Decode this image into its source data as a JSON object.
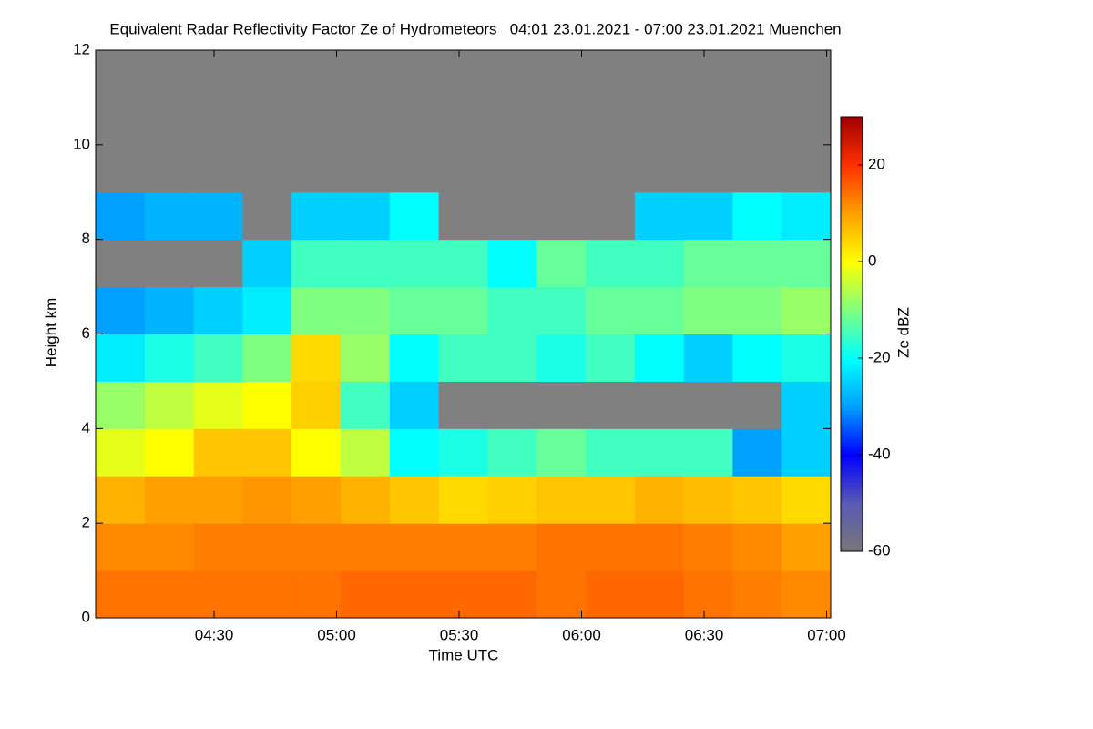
{
  "chart_data": {
    "type": "heatmap",
    "title": "Equivalent Radar Reflectivity Factor Ze of Hydrometeors   04:01 23.01.2021 - 07:00 23.01.2021 Muenchen",
    "x_label": "Time UTC",
    "y_label": "Height km",
    "colorbar_label": "Ze dBZ",
    "xlim": [
      241,
      421
    ],
    "ylim": [
      0,
      12
    ],
    "xticks": [
      {
        "value": 270,
        "label": "04:30"
      },
      {
        "value": 300,
        "label": "05:00"
      },
      {
        "value": 330,
        "label": "05:30"
      },
      {
        "value": 360,
        "label": "06:00"
      },
      {
        "value": 390,
        "label": "06:30"
      },
      {
        "value": 420,
        "label": "07:00"
      }
    ],
    "yticks": [
      0,
      2,
      4,
      6,
      8,
      10,
      12
    ],
    "x_bins": [
      241,
      253,
      265,
      277,
      289,
      301,
      313,
      325,
      337,
      349,
      361,
      373,
      385,
      397,
      409,
      421
    ],
    "y_bins": [
      0,
      1,
      2,
      3,
      4,
      5,
      6,
      7,
      8,
      9,
      10,
      11,
      12
    ],
    "values": [
      [
        14,
        14,
        14,
        14,
        14,
        15,
        15,
        15,
        15,
        14,
        15,
        15,
        14,
        13,
        12
      ],
      [
        12,
        12,
        13,
        13,
        13,
        13,
        13,
        13,
        13,
        14,
        14,
        14,
        13,
        12,
        10
      ],
      [
        8,
        10,
        10,
        11,
        10,
        8,
        6,
        4,
        5,
        6,
        6,
        8,
        7,
        6,
        4
      ],
      [
        -2,
        0,
        6,
        6,
        0,
        -5,
        -20,
        -18,
        -15,
        -12,
        -15,
        -15,
        -15,
        -30,
        -25
      ],
      [
        -8,
        -5,
        -2,
        0,
        5,
        -15,
        -25,
        null,
        null,
        null,
        null,
        null,
        null,
        null,
        -25
      ],
      [
        -22,
        -18,
        -15,
        -10,
        4,
        -8,
        -20,
        -15,
        -15,
        -18,
        -15,
        -20,
        -25,
        -20,
        -18
      ],
      [
        -30,
        -28,
        -25,
        -22,
        -10,
        -10,
        -12,
        -12,
        -15,
        -15,
        -12,
        -12,
        -10,
        -10,
        -8
      ],
      [
        null,
        null,
        null,
        -25,
        -15,
        -15,
        -15,
        -15,
        -20,
        -12,
        -15,
        -15,
        -12,
        -12,
        -12
      ],
      [
        -30,
        -28,
        -28,
        null,
        -25,
        -25,
        -20,
        null,
        null,
        null,
        null,
        -25,
        -25,
        -20,
        -22
      ],
      [
        null,
        null,
        null,
        null,
        null,
        null,
        null,
        null,
        null,
        null,
        null,
        null,
        null,
        null,
        null
      ],
      [
        null,
        null,
        null,
        null,
        null,
        null,
        null,
        null,
        null,
        null,
        null,
        null,
        null,
        null,
        null
      ],
      [
        null,
        null,
        null,
        null,
        null,
        null,
        null,
        null,
        null,
        null,
        null,
        null,
        null,
        null,
        null
      ]
    ],
    "zlim": [
      -60,
      30
    ],
    "zticks": [
      -60,
      -40,
      -20,
      0,
      20
    ],
    "colors": [
      "#787878",
      "#5a5ab4",
      "#0000ff",
      "#00a0ff",
      "#00ffff",
      "#80ff80",
      "#ffff00",
      "#ffa000",
      "#ff3000",
      "#a00000"
    ],
    "missing_color": "#808080"
  }
}
